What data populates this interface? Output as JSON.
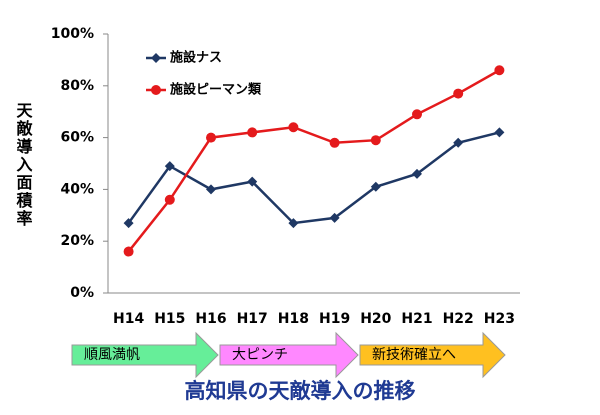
{
  "chart_data": {
    "type": "line",
    "title": "高知県の天敵導入の推移",
    "y_label": "天敵導入面積率",
    "categories": [
      "H14",
      "H15",
      "H16",
      "H17",
      "H18",
      "H19",
      "H20",
      "H21",
      "H22",
      "H23"
    ],
    "series": [
      {
        "name": "施設ナス",
        "color": "#1f3864",
        "marker": "diamond",
        "values": [
          27,
          49,
          40,
          43,
          27,
          29,
          41,
          46,
          58,
          62
        ]
      },
      {
        "name": "施設ピーマン類",
        "color": "#e41a1c",
        "marker": "circle",
        "values": [
          16,
          36,
          60,
          62,
          64,
          58,
          59,
          69,
          77,
          86
        ]
      }
    ],
    "ylim": [
      0,
      100
    ],
    "yticks": [
      {
        "value": 0,
        "label": "0%"
      },
      {
        "value": 20,
        "label": "20%"
      },
      {
        "value": 40,
        "label": "40%"
      },
      {
        "value": 60,
        "label": "60%"
      },
      {
        "value": 80,
        "label": "80%"
      },
      {
        "value": 100,
        "label": "100%"
      }
    ],
    "grid": false,
    "legend": "top-left",
    "phases": [
      {
        "label": "順風満帆",
        "color": "#66ee99"
      },
      {
        "label": "大ピンチ",
        "color": "#ff88ff"
      },
      {
        "label": "新技術確立へ",
        "color": "#ffc020"
      }
    ]
  }
}
